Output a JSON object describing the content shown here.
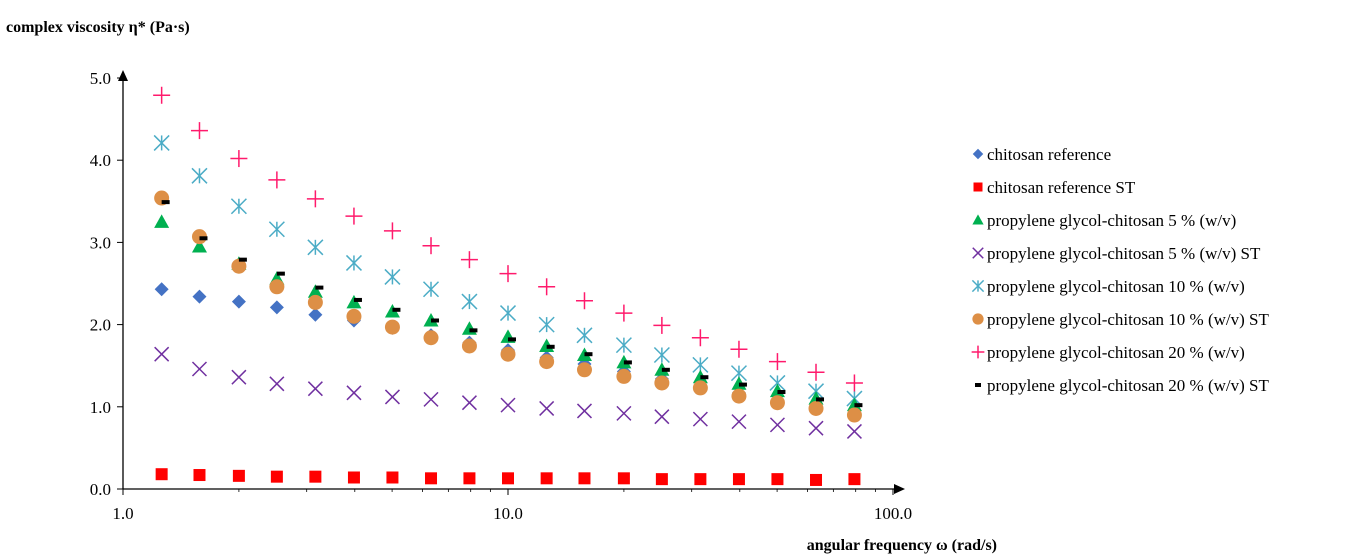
{
  "chart_data": {
    "type": "scatter",
    "title": "",
    "xlabel": "angular frequency ω (rad/s)",
    "ylabel": "complex viscosity η* (Pa·s)",
    "xscale": "log",
    "xlim": [
      1,
      100
    ],
    "ylim": [
      0,
      5
    ],
    "xticks": [
      1,
      10,
      100
    ],
    "xtick_labels": [
      "1.0",
      "10.0",
      "100.0"
    ],
    "yticks": [
      0,
      1,
      2,
      3,
      4,
      5
    ],
    "ytick_labels": [
      "0.0",
      "1.0",
      "2.0",
      "3.0",
      "4.0",
      "5.0"
    ],
    "grid": false,
    "legend_position": "right",
    "x": [
      1.26,
      1.58,
      2.0,
      2.51,
      3.16,
      3.98,
      5.01,
      6.31,
      7.94,
      10.0,
      12.6,
      15.8,
      20.0,
      25.1,
      31.6,
      39.8,
      50.1,
      63.1,
      79.4
    ],
    "series": [
      {
        "name": "chitosan reference",
        "marker": "diamond",
        "color": "#4472c4",
        "values": [
          2.43,
          2.34,
          2.28,
          2.21,
          2.12,
          2.05,
          1.96,
          1.87,
          1.78,
          1.69,
          1.6,
          1.52,
          1.43,
          1.34,
          1.25,
          1.17,
          1.08,
          1.0,
          0.92
        ]
      },
      {
        "name": "chitosan reference ST",
        "marker": "square",
        "color": "#ff0000",
        "values": [
          0.18,
          0.17,
          0.16,
          0.15,
          0.15,
          0.14,
          0.14,
          0.13,
          0.13,
          0.13,
          0.13,
          0.13,
          0.13,
          0.12,
          0.12,
          0.12,
          0.12,
          0.11,
          0.12
        ]
      },
      {
        "name": "propylene glycol-chitosan 5 % (w/v)",
        "marker": "triangle",
        "color": "#00b050",
        "values": [
          3.25,
          2.95,
          2.74,
          2.56,
          2.4,
          2.27,
          2.16,
          2.05,
          1.95,
          1.85,
          1.74,
          1.63,
          1.54,
          1.45,
          1.36,
          1.28,
          1.19,
          1.1,
          1.02
        ]
      },
      {
        "name": "propylene glycol-chitosan 5 % (w/v) ST",
        "marker": "x",
        "color": "#7030a0",
        "values": [
          1.64,
          1.46,
          1.36,
          1.28,
          1.22,
          1.17,
          1.12,
          1.09,
          1.05,
          1.02,
          0.98,
          0.95,
          0.92,
          0.88,
          0.85,
          0.82,
          0.78,
          0.74,
          0.7
        ]
      },
      {
        "name": "propylene glycol-chitosan 10 % (w/v)",
        "marker": "asterisk",
        "color": "#4bacc6",
        "values": [
          4.21,
          3.81,
          3.44,
          3.16,
          2.94,
          2.75,
          2.58,
          2.43,
          2.28,
          2.14,
          2.0,
          1.87,
          1.75,
          1.63,
          1.51,
          1.41,
          1.29,
          1.19,
          1.1
        ]
      },
      {
        "name": "propylene glycol-chitosan 10 % (w/v) ST",
        "marker": "circle",
        "color": "#dd8f46",
        "values": [
          3.54,
          3.07,
          2.71,
          2.46,
          2.27,
          2.1,
          1.97,
          1.84,
          1.74,
          1.64,
          1.55,
          1.45,
          1.37,
          1.29,
          1.23,
          1.13,
          1.05,
          0.98,
          0.9
        ]
      },
      {
        "name": "propylene glycol-chitosan 20 % (w/v)",
        "marker": "plus",
        "color": "#ff1a6c",
        "values": [
          4.79,
          4.36,
          4.02,
          3.76,
          3.53,
          3.32,
          3.14,
          2.96,
          2.79,
          2.62,
          2.46,
          2.29,
          2.14,
          1.99,
          1.84,
          1.7,
          1.55,
          1.42,
          1.29
        ]
      },
      {
        "name": "propylene glycol-chitosan 20 % (w/v) ST",
        "marker": "dash",
        "color": "#000000",
        "values": [
          3.49,
          3.05,
          2.79,
          2.62,
          2.45,
          2.3,
          2.18,
          2.05,
          1.93,
          1.82,
          1.73,
          1.64,
          1.54,
          1.45,
          1.36,
          1.27,
          1.18,
          1.09,
          1.02
        ]
      }
    ]
  }
}
